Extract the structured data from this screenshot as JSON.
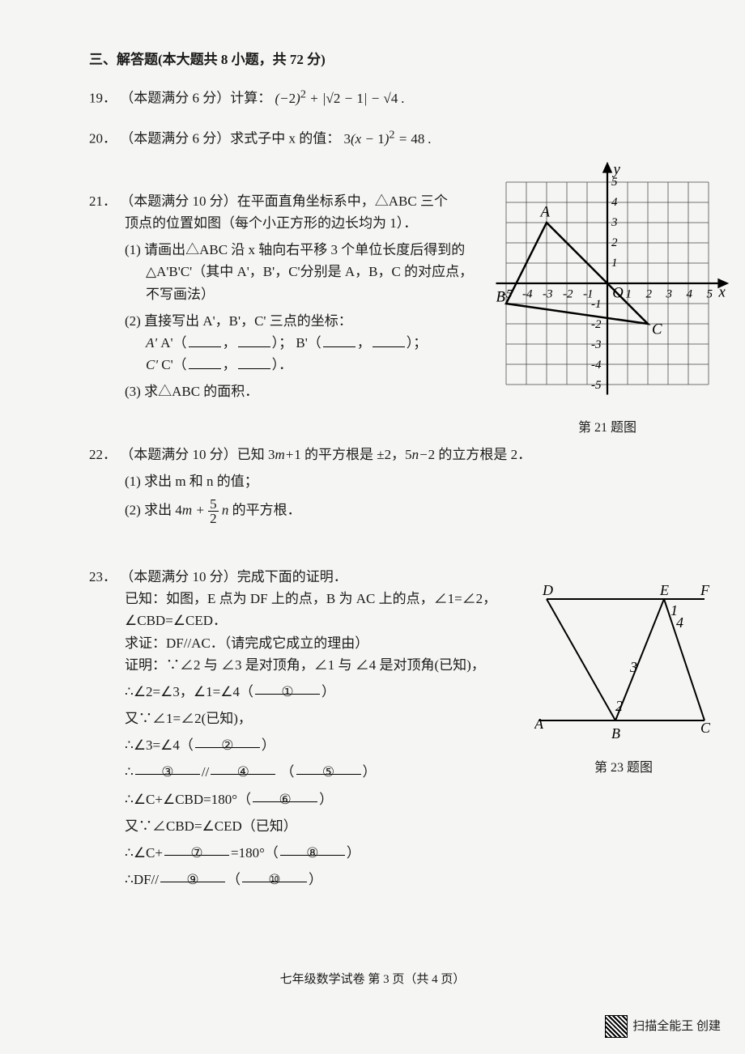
{
  "section_header": "三、解答题(本大题共 8 小题，共 72 分)",
  "q19": {
    "num": "19．",
    "prefix": "（本题满分 6 分）计算：",
    "expr": "(−2)² + |√2 − 1| − √4 ."
  },
  "q20": {
    "num": "20．",
    "prefix": "（本题满分 6 分）求式子中 x 的值：",
    "expr": "3(x − 1)² = 48 ."
  },
  "q21": {
    "num": "21．",
    "prefix": "（本题满分 10 分）在平面直角坐标系中，△ABC 三个",
    "line2": "顶点的位置如图（每个小正方形的边长均为 1）．",
    "p1_a": "(1) 请画出△ABC 沿 x 轴向右平移 3 个单位长度后得到的",
    "p1_b": "△A'B'C'（其中 A'，B'，C'分别是 A，B，C 的对应点，",
    "p1_c": "不写画法）",
    "p2": "(2) 直接写出 A'，B'，C' 三点的坐标：",
    "p2_a_label": "A'（",
    "p2_b_label": "）；  B'（",
    "p2_b_end": "）；",
    "p2_c_label": "C'（",
    "p2_c_end": "）．",
    "p3": "(3) 求△ABC 的面积．",
    "caption": "第 21 题图",
    "grid": {
      "xmin": -5,
      "xmax": 5,
      "ymin": -5,
      "ymax": 5,
      "A": [
        -3,
        3
      ],
      "B": [
        -5,
        -1
      ],
      "C": [
        2,
        -2
      ],
      "axis_color": "#000",
      "grid_color": "#444",
      "x_label": "x",
      "y_label": "y",
      "origin_label": "O"
    }
  },
  "q22": {
    "num": "22．",
    "prefix": "（本题满分 10 分）已知 3m+1 的平方根是 ±2，5n−2 的立方根是 2．",
    "p1": "(1) 求出 m 和 n 的值；",
    "p2": "(2) 求出 4m + (5/2)n 的平方根．"
  },
  "q23": {
    "num": "23．",
    "prefix": "（本题满分 10 分）完成下面的证明．",
    "known": "已知：如图，E 点为 DF 上的点，B 为 AC 上的点，∠1=∠2，",
    "known2": "∠CBD=∠CED．",
    "prove": "求证：DF//AC．（请完成它成立的理由）",
    "proof1": "证明：∵∠2 与 ∠3 是对顶角，∠1 与 ∠4 是对顶角(已知)，",
    "proof2a": "∴∠2=∠3，∠1=∠4（",
    "proof2b": "）",
    "proof3": "又∵∠1=∠2(已知)，",
    "proof4a": "∴∠3=∠4（",
    "proof4b": "）",
    "proof5a": "∴",
    "proof5b": "//",
    "proof5c": "（",
    "proof5d": "）",
    "proof6a": "∴∠C+∠CBD=180°（",
    "proof6b": "）",
    "proof7": "又∵∠CBD=∠CED（已知）",
    "proof8a": "∴∠C+",
    "proof8b": "=180°（",
    "proof8c": "）",
    "proof9a": "∴DF//",
    "proof9b": "（",
    "proof9c": "）",
    "c1": "①",
    "c2": "②",
    "c3": "③",
    "c4": "④",
    "c5": "⑤",
    "c6": "⑥",
    "c7": "⑦",
    "c8": "⑧",
    "c9": "⑨",
    "c10": "⑩",
    "caption": "第 23 题图"
  },
  "footer": "七年级数学试卷  第 3 页（共 4 页）",
  "watermark": "扫描全能王  创建"
}
